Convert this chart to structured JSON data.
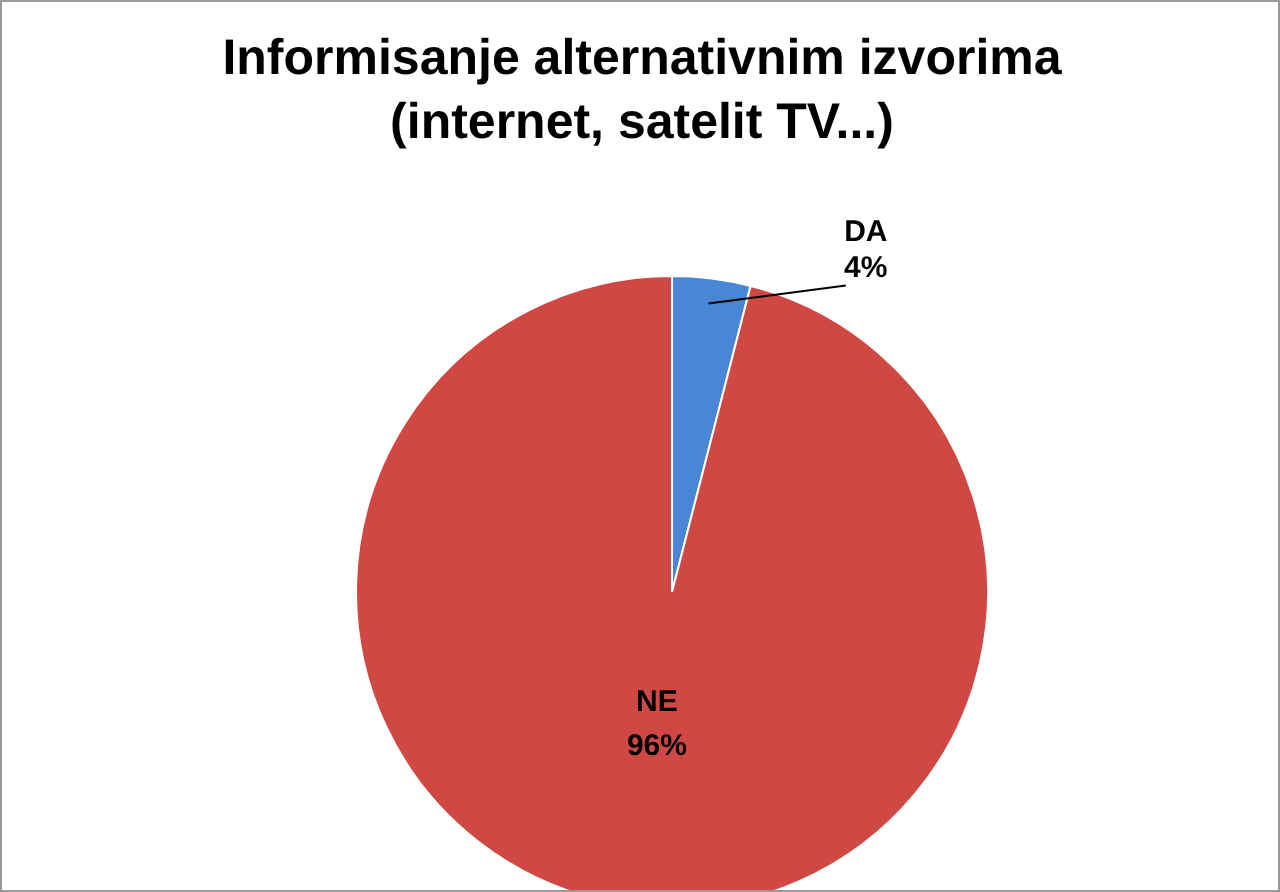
{
  "chart_data": {
    "type": "pie",
    "title": "Informisanje alternativnim izvorima (internet, satelit TV...)",
    "categories": [
      "DA",
      "NE"
    ],
    "values": [
      4,
      96
    ],
    "value_labels": [
      "4%",
      "96%"
    ],
    "colors": [
      "#4a86d6",
      "#d04844"
    ],
    "legend": false
  }
}
